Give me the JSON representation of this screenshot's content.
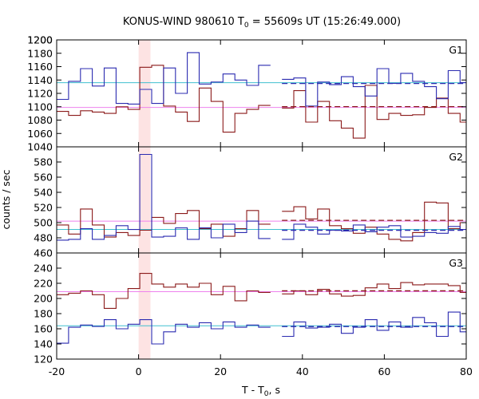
{
  "chart_data": {
    "type": "line",
    "title_main": "KONUS-WIND 980610 T",
    "title_sub": "0",
    "title_rest": " = 55609s UT (15:26:49.000)",
    "xlabel_main": "T - T",
    "xlabel_sub": "0",
    "xlabel_rest": ", s",
    "ylabel": "counts / sec",
    "xlim": [
      -20,
      80
    ],
    "xticks": [
      -20,
      0,
      20,
      40,
      60,
      80
    ],
    "trigger_band": [
      0,
      2.9
    ],
    "colors": {
      "red": "#8b1a1a",
      "blue": "#2b2bb0",
      "pink": "#ee82ee",
      "cyan": "#40c0d0",
      "band": "#fde3e3"
    },
    "panels": [
      {
        "name": "G1",
        "ylim": [
          1040,
          1200
        ],
        "yticks": [
          1040,
          1060,
          1080,
          1100,
          1120,
          1140,
          1160,
          1180,
          1200
        ],
        "red_bg": 1099,
        "blue_bg": 1136,
        "fit_start": 35,
        "red_steps": {
          "edges": [
            -20,
            -17.1,
            -14.2,
            -11.3,
            -8.4,
            -5.5,
            -2.6,
            0.3,
            3.2,
            6.1,
            9.0,
            11.9,
            14.8,
            17.7,
            20.6,
            23.5,
            26.4,
            29.3,
            32.2
          ],
          "values": [
            1093,
            1087,
            1094,
            1092,
            1090,
            1100,
            1096,
            1159,
            1162,
            1101,
            1092,
            1078,
            1128,
            1108,
            1062,
            1090,
            1096,
            1102
          ]
        },
        "red_steps2": {
          "edges": [
            35,
            37.9,
            40.8,
            43.7,
            46.6,
            49.5,
            52.4,
            55.3,
            58.2,
            61.1,
            64.0,
            66.9,
            69.8,
            72.7,
            75.6,
            78.5,
            81.4
          ],
          "values": [
            1098,
            1124,
            1077,
            1108,
            1079,
            1068,
            1053,
            1132,
            1081,
            1090,
            1087,
            1088,
            1099,
            1113,
            1090,
            1077
          ]
        },
        "blue_steps": {
          "edges": [
            -20,
            -17.1,
            -14.2,
            -11.3,
            -8.4,
            -5.5,
            -2.6,
            0.3,
            3.2,
            6.1,
            9.0,
            11.9,
            14.8,
            17.7,
            20.6,
            23.5,
            26.4,
            29.3,
            32.2
          ],
          "values": [
            1111,
            1138,
            1157,
            1131,
            1158,
            1105,
            1104,
            1126,
            1105,
            1158,
            1120,
            1181,
            1134,
            1137,
            1149,
            1140,
            1132,
            1162
          ]
        },
        "blue_steps2": {
          "edges": [
            35,
            37.9,
            40.8,
            43.7,
            46.6,
            49.5,
            52.4,
            55.3,
            58.2,
            61.1,
            64.0,
            66.9,
            69.8,
            72.7,
            75.6,
            78.5,
            81.4
          ],
          "values": [
            1141,
            1143,
            1101,
            1137,
            1133,
            1145,
            1130,
            1116,
            1157,
            1135,
            1150,
            1138,
            1130,
            1112,
            1154,
            1136
          ]
        }
      },
      {
        "name": "G2",
        "ylim": [
          460,
          600
        ],
        "yticks": [
          460,
          480,
          500,
          520,
          540,
          560,
          580
        ],
        "red_bg": 502,
        "blue_bg": 491,
        "fit_start": 35,
        "red_steps": {
          "edges": [
            -20,
            -17.1,
            -14.2,
            -11.3,
            -8.4,
            -5.5,
            -2.6,
            0.3,
            3.2,
            6.1,
            9.0,
            11.9,
            14.8,
            17.7,
            20.6,
            23.5,
            26.4,
            29.3,
            32.2
          ],
          "values": [
            497,
            485,
            518,
            497,
            481,
            487,
            483,
            490,
            507,
            499,
            512,
            516,
            492,
            498,
            482,
            492,
            516,
            498
          ]
        },
        "red_steps2": {
          "edges": [
            35,
            37.9,
            40.8,
            43.7,
            46.6,
            49.5,
            52.4,
            55.3,
            58.2,
            61.1,
            64.0,
            66.9,
            69.8,
            72.7,
            75.6,
            78.5,
            81.4
          ],
          "values": [
            515,
            521,
            505,
            518,
            496,
            492,
            486,
            494,
            485,
            478,
            476,
            487,
            527,
            526,
            492,
            500
          ]
        },
        "blue_steps": {
          "edges": [
            -20,
            -17.1,
            -14.2,
            -11.3,
            -8.4,
            -5.5,
            -2.6,
            0.3,
            3.2,
            6.1,
            9.0,
            11.9,
            14.8,
            17.7,
            20.6,
            23.5,
            26.4,
            29.3,
            32.2
          ],
          "values": [
            477,
            478,
            492,
            478,
            483,
            496,
            491,
            590,
            481,
            482,
            493,
            478,
            493,
            480,
            498,
            487,
            502,
            479
          ]
        },
        "blue_steps2": {
          "edges": [
            35,
            37.9,
            40.8,
            43.7,
            46.6,
            49.5,
            52.4,
            55.3,
            58.2,
            61.1,
            64.0,
            66.9,
            69.8,
            72.7,
            75.6,
            78.5,
            81.4
          ],
          "values": [
            478,
            498,
            494,
            485,
            490,
            489,
            497,
            488,
            494,
            496,
            481,
            482,
            487,
            486,
            495,
            491
          ]
        }
      },
      {
        "name": "G3",
        "ylim": [
          120,
          260
        ],
        "yticks": [
          120,
          140,
          160,
          180,
          200,
          220,
          240
        ],
        "red_bg": 209,
        "blue_bg": 164,
        "fit_start": 35,
        "red_steps": {
          "edges": [
            -20,
            -17.1,
            -14.2,
            -11.3,
            -8.4,
            -5.5,
            -2.6,
            0.3,
            3.2,
            6.1,
            9.0,
            11.9,
            14.8,
            17.7,
            20.6,
            23.5,
            26.4,
            29.3,
            32.2
          ],
          "values": [
            205,
            207,
            210,
            205,
            187,
            200,
            213,
            233,
            219,
            215,
            219,
            215,
            220,
            205,
            216,
            197,
            210,
            208
          ]
        },
        "red_steps2": {
          "edges": [
            35,
            37.9,
            40.8,
            43.7,
            46.6,
            49.5,
            52.4,
            55.3,
            58.2,
            61.1,
            64.0,
            66.9,
            69.8,
            72.7,
            75.6,
            78.5,
            81.4
          ],
          "values": [
            206,
            210,
            205,
            212,
            206,
            203,
            204,
            214,
            219,
            213,
            221,
            218,
            219,
            219,
            217,
            208
          ]
        },
        "blue_steps": {
          "edges": [
            -20,
            -17.1,
            -14.2,
            -11.3,
            -8.4,
            -5.5,
            -2.6,
            0.3,
            3.2,
            6.1,
            9.0,
            11.9,
            14.8,
            17.7,
            20.6,
            23.5,
            26.4,
            29.3,
            32.2
          ],
          "values": [
            141,
            162,
            165,
            163,
            172,
            160,
            166,
            172,
            140,
            156,
            166,
            162,
            168,
            160,
            169,
            162,
            165,
            162
          ]
        },
        "blue_steps2": {
          "edges": [
            35,
            37.9,
            40.8,
            43.7,
            46.6,
            49.5,
            52.4,
            55.3,
            58.2,
            61.1,
            64.0,
            66.9,
            69.8,
            72.7,
            75.6,
            78.5,
            81.4
          ],
          "values": [
            150,
            169,
            161,
            162,
            166,
            154,
            162,
            172,
            158,
            169,
            162,
            175,
            168,
            150,
            182,
            156
          ]
        }
      }
    ]
  }
}
